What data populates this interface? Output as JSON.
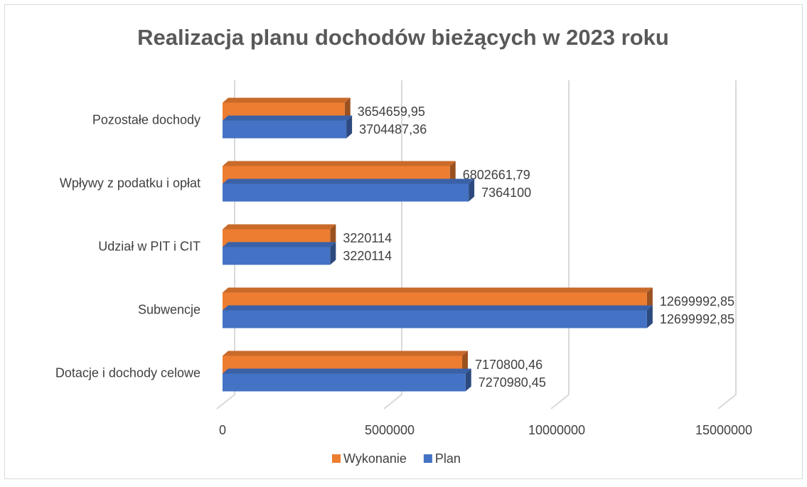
{
  "chart_data": {
    "type": "bar3d_horizontal",
    "title": "Realizacja planu dochodów bieżących w 2023 roku",
    "categories": [
      "Pozostałe dochody",
      "Wpływy z podatku i opłat",
      "Udział w PIT i CIT",
      "Subwencje",
      "Dotacje i dochody celowe"
    ],
    "series": [
      {
        "name": "Wykonanie",
        "color": "#ED7D31",
        "values": [
          3654659.95,
          6802661.79,
          3220114,
          12699992.85,
          7170800.46
        ],
        "value_labels": [
          "3654659,95",
          "6802661,79",
          "3220114",
          "12699992,85",
          "7170800,46"
        ]
      },
      {
        "name": "Plan",
        "color": "#4472C4",
        "values": [
          3704487.36,
          7364100,
          3220114,
          12699992.85,
          7270980.45
        ],
        "value_labels": [
          "3704487,36",
          "7364100",
          "3220114",
          "12699992,85",
          "7270980,45"
        ]
      }
    ],
    "xlim": [
      0,
      15000000
    ],
    "xticks": [
      0,
      5000000,
      10000000,
      15000000
    ],
    "grid": true,
    "legend": "bottom"
  }
}
